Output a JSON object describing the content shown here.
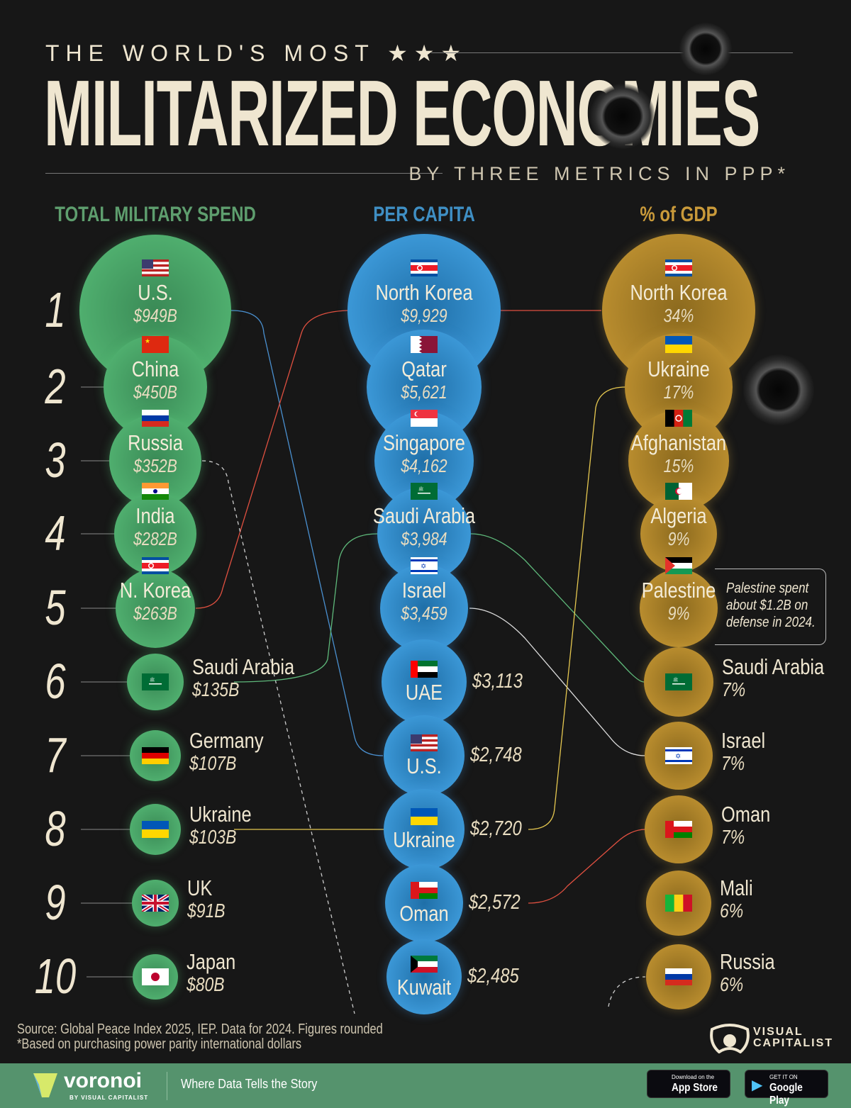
{
  "header": {
    "kicker": "THE WORLD'S MOST ★★★",
    "title": "MILITARIZED ECONOMIES",
    "subtitle": "BY THREE METRICS IN PPP*"
  },
  "chart_data": {
    "type": "bubble-ranking",
    "ranks": [
      "1",
      "2",
      "3",
      "4",
      "5",
      "6",
      "7",
      "8",
      "9",
      "10"
    ],
    "colors": {
      "total": "#5e9e6e",
      "per_capita": "#3f8fc4",
      "gdp": "#c99a3a"
    },
    "columns": [
      {
        "key": "total",
        "title": "TOTAL MILITARY SPEND",
        "unit": "PPP $B",
        "items": [
          {
            "name": "U.S.",
            "label": "$949B",
            "value": 949,
            "flag": "us"
          },
          {
            "name": "China",
            "label": "$450B",
            "value": 450,
            "flag": "cn"
          },
          {
            "name": "Russia",
            "label": "$352B",
            "value": 352,
            "flag": "ru"
          },
          {
            "name": "India",
            "label": "$282B",
            "value": 282,
            "flag": "in"
          },
          {
            "name": "N. Korea",
            "label": "$263B",
            "value": 263,
            "flag": "kp"
          },
          {
            "name": "Saudi Arabia",
            "label": "$135B",
            "value": 135,
            "flag": "sa"
          },
          {
            "name": "Germany",
            "label": "$107B",
            "value": 107,
            "flag": "de"
          },
          {
            "name": "Ukraine",
            "label": "$103B",
            "value": 103,
            "flag": "ua"
          },
          {
            "name": "UK",
            "label": "$91B",
            "value": 91,
            "flag": "gb"
          },
          {
            "name": "Japan",
            "label": "$80B",
            "value": 80,
            "flag": "jp"
          }
        ]
      },
      {
        "key": "per_capita",
        "title": "PER CAPITA",
        "unit": "PPP $",
        "items": [
          {
            "name": "North Korea",
            "label": "$9,929",
            "value": 9929,
            "flag": "kp"
          },
          {
            "name": "Qatar",
            "label": "$5,621",
            "value": 5621,
            "flag": "qa"
          },
          {
            "name": "Singapore",
            "label": "$4,162",
            "value": 4162,
            "flag": "sg"
          },
          {
            "name": "Saudi Arabia",
            "label": "$3,984",
            "value": 3984,
            "flag": "sa"
          },
          {
            "name": "Israel",
            "label": "$3,459",
            "value": 3459,
            "flag": "il"
          },
          {
            "name": "UAE",
            "label": "$3,113",
            "value": 3113,
            "flag": "ae"
          },
          {
            "name": "U.S.",
            "label": "$2,748",
            "value": 2748,
            "flag": "us"
          },
          {
            "name": "Ukraine",
            "label": "$2,720",
            "value": 2720,
            "flag": "ua"
          },
          {
            "name": "Oman",
            "label": "$2,572",
            "value": 2572,
            "flag": "om"
          },
          {
            "name": "Kuwait",
            "label": "$2,485",
            "value": 2485,
            "flag": "kw"
          }
        ]
      },
      {
        "key": "gdp",
        "title": "% of GDP",
        "unit": "%",
        "items": [
          {
            "name": "North Korea",
            "label": "34%",
            "value": 34,
            "flag": "kp"
          },
          {
            "name": "Ukraine",
            "label": "17%",
            "value": 17,
            "flag": "ua"
          },
          {
            "name": "Afghanistan",
            "label": "15%",
            "value": 15,
            "flag": "af"
          },
          {
            "name": "Algeria",
            "label": "9%",
            "value": 9,
            "flag": "dz"
          },
          {
            "name": "Palestine",
            "label": "9%",
            "value": 9,
            "flag": "ps"
          },
          {
            "name": "Saudi Arabia",
            "label": "7%",
            "value": 7,
            "flag": "sa"
          },
          {
            "name": "Israel",
            "label": "7%",
            "value": 7,
            "flag": "il"
          },
          {
            "name": "Oman",
            "label": "7%",
            "value": 7,
            "flag": "om"
          },
          {
            "name": "Mali",
            "label": "6%",
            "value": 6,
            "flag": "ml"
          },
          {
            "name": "Russia",
            "label": "6%",
            "value": 6,
            "flag": "ru"
          }
        ]
      }
    ],
    "annotation": "Palestine spent about $1.2B on defense in 2024."
  },
  "footer": {
    "source": "Source: Global Peace Index 2025, IEP. Data for 2024. Figures rounded",
    "footnote": "*Based on purchasing power parity international dollars",
    "brand": "VISUAL CAPITALIST",
    "voronoi": "voronoi",
    "voronoi_by": "BY VISUAL CAPITALIST",
    "tagline": "Where Data Tells the Story",
    "app_store_small": "Download on the",
    "app_store": "App Store",
    "google_play_small": "GET IT ON",
    "google_play": "Google Play"
  }
}
